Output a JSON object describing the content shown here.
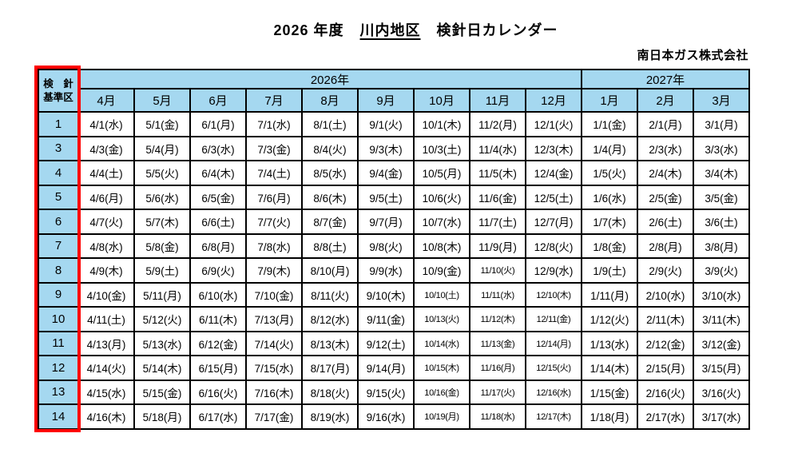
{
  "page": {
    "title_prefix": "2026 年度",
    "title_underlined": "川内地区",
    "title_suffix": "検針日カレンダー",
    "company": "南日本ガス株式会社"
  },
  "table": {
    "corner_line1": "検　針",
    "corner_line2": "基準区",
    "year_groups": [
      {
        "label": "2026年",
        "span": 9
      },
      {
        "label": "2027年",
        "span": 3
      }
    ],
    "months": [
      "4月",
      "5月",
      "6月",
      "7月",
      "8月",
      "9月",
      "10月",
      "11月",
      "12月",
      "1月",
      "2月",
      "3月"
    ],
    "rows": [
      {
        "zone": "1",
        "dates": [
          "4/1(水)",
          "5/1(金)",
          "6/1(月)",
          "7/1(水)",
          "8/1(土)",
          "9/1(火)",
          "10/1(木)",
          "11/2(月)",
          "12/1(火)",
          "1/1(金)",
          "2/1(月)",
          "3/1(月)"
        ]
      },
      {
        "zone": "3",
        "dates": [
          "4/3(金)",
          "5/4(月)",
          "6/3(水)",
          "7/3(金)",
          "8/4(火)",
          "9/3(木)",
          "10/3(土)",
          "11/4(水)",
          "12/3(木)",
          "1/4(月)",
          "2/3(水)",
          "3/3(水)"
        ]
      },
      {
        "zone": "4",
        "dates": [
          "4/4(土)",
          "5/5(火)",
          "6/4(木)",
          "7/4(土)",
          "8/5(水)",
          "9/4(金)",
          "10/5(月)",
          "11/5(木)",
          "12/4(金)",
          "1/5(火)",
          "2/4(木)",
          "3/4(木)"
        ]
      },
      {
        "zone": "5",
        "dates": [
          "4/6(月)",
          "5/6(水)",
          "6/5(金)",
          "7/6(月)",
          "8/6(木)",
          "9/5(土)",
          "10/6(火)",
          "11/6(金)",
          "12/5(土)",
          "1/6(水)",
          "2/5(金)",
          "3/5(金)"
        ]
      },
      {
        "zone": "6",
        "dates": [
          "4/7(火)",
          "5/7(木)",
          "6/6(土)",
          "7/7(火)",
          "8/7(金)",
          "9/7(月)",
          "10/7(水)",
          "11/7(土)",
          "12/7(月)",
          "1/7(木)",
          "2/6(土)",
          "3/6(土)"
        ]
      },
      {
        "zone": "7",
        "dates": [
          "4/8(水)",
          "5/8(金)",
          "6/8(月)",
          "7/8(水)",
          "8/8(土)",
          "9/8(火)",
          "10/8(木)",
          "11/9(月)",
          "12/8(火)",
          "1/8(金)",
          "2/8(月)",
          "3/8(月)"
        ]
      },
      {
        "zone": "8",
        "dates": [
          "4/9(木)",
          "5/9(土)",
          "6/9(火)",
          "7/9(木)",
          "8/10(月)",
          "9/9(水)",
          "10/9(金)",
          "11/10(火)",
          "12/9(水)",
          "1/9(土)",
          "2/9(火)",
          "3/9(火)"
        ]
      },
      {
        "zone": "9",
        "dates": [
          "4/10(金)",
          "5/11(月)",
          "6/10(水)",
          "7/10(金)",
          "8/11(火)",
          "9/10(木)",
          "10/10(土)",
          "11/11(水)",
          "12/10(木)",
          "1/11(月)",
          "2/10(水)",
          "3/10(水)"
        ]
      },
      {
        "zone": "10",
        "dates": [
          "4/11(土)",
          "5/12(火)",
          "6/11(木)",
          "7/13(月)",
          "8/12(水)",
          "9/11(金)",
          "10/13(火)",
          "11/12(木)",
          "12/11(金)",
          "1/12(火)",
          "2/11(木)",
          "3/11(木)"
        ]
      },
      {
        "zone": "11",
        "dates": [
          "4/13(月)",
          "5/13(水)",
          "6/12(金)",
          "7/14(火)",
          "8/13(木)",
          "9/12(土)",
          "10/14(水)",
          "11/13(金)",
          "12/14(月)",
          "1/13(水)",
          "2/12(金)",
          "3/12(金)"
        ]
      },
      {
        "zone": "12",
        "dates": [
          "4/14(火)",
          "5/14(木)",
          "6/15(月)",
          "7/15(水)",
          "8/17(月)",
          "9/14(月)",
          "10/15(木)",
          "11/16(月)",
          "12/15(火)",
          "1/14(木)",
          "2/15(月)",
          "3/15(月)"
        ]
      },
      {
        "zone": "13",
        "dates": [
          "4/15(水)",
          "5/15(金)",
          "6/16(火)",
          "7/16(木)",
          "8/18(火)",
          "9/15(火)",
          "10/16(金)",
          "11/17(火)",
          "12/16(水)",
          "1/15(金)",
          "2/16(火)",
          "3/16(火)"
        ]
      },
      {
        "zone": "14",
        "dates": [
          "4/16(木)",
          "5/18(月)",
          "6/17(水)",
          "7/17(金)",
          "8/19(水)",
          "9/16(水)",
          "10/19(月)",
          "11/18(水)",
          "12/17(木)",
          "1/18(月)",
          "2/17(水)",
          "3/17(水)"
        ]
      }
    ]
  },
  "colors": {
    "header_blue": "#A5D8F0",
    "border_black": "#000000",
    "highlight_red": "#FF0000",
    "cell_white": "#FFFFFF"
  }
}
